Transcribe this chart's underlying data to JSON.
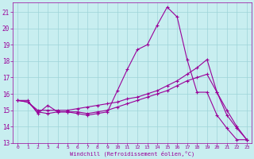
{
  "xlabel": "Windchill (Refroidissement éolien,°C)",
  "background_color": "#c8eef0",
  "grid_color": "#9dd4d8",
  "line_color": "#990099",
  "xlim": [
    -0.5,
    23.5
  ],
  "ylim": [
    13,
    21.6
  ],
  "yticks": [
    13,
    14,
    15,
    16,
    17,
    18,
    19,
    20,
    21
  ],
  "xticks": [
    0,
    1,
    2,
    3,
    4,
    5,
    6,
    7,
    8,
    9,
    10,
    11,
    12,
    13,
    14,
    15,
    16,
    17,
    18,
    19,
    20,
    21,
    22,
    23
  ],
  "line1_x": [
    0,
    1,
    2,
    3,
    4,
    5,
    6,
    7,
    8,
    9,
    10,
    11,
    12,
    13,
    14,
    15,
    16,
    17,
    18,
    19,
    20,
    21,
    22,
    23
  ],
  "line1_y": [
    15.6,
    15.6,
    14.8,
    15.3,
    14.9,
    14.9,
    14.8,
    14.7,
    14.8,
    14.9,
    16.2,
    17.5,
    18.7,
    19.0,
    20.2,
    21.3,
    20.7,
    18.1,
    16.1,
    16.1,
    14.7,
    13.9,
    13.2,
    13.2
  ],
  "line2_x": [
    0,
    1,
    2,
    3,
    4,
    5,
    6,
    7,
    8,
    9,
    10,
    11,
    12,
    13,
    14,
    15,
    16,
    17,
    18,
    19,
    20,
    21,
    22,
    23
  ],
  "line2_y": [
    15.6,
    15.5,
    15.0,
    15.0,
    15.0,
    15.0,
    15.1,
    15.2,
    15.3,
    15.4,
    15.5,
    15.7,
    15.8,
    16.0,
    16.2,
    16.5,
    16.8,
    17.2,
    17.6,
    18.1,
    16.1,
    14.7,
    13.9,
    13.2
  ],
  "line3_x": [
    0,
    1,
    2,
    3,
    4,
    5,
    6,
    7,
    8,
    9,
    10,
    11,
    12,
    13,
    14,
    15,
    16,
    17,
    18,
    19,
    20,
    21,
    22,
    23
  ],
  "line3_y": [
    15.6,
    15.5,
    14.9,
    14.8,
    14.9,
    14.9,
    14.9,
    14.8,
    14.9,
    15.0,
    15.2,
    15.4,
    15.6,
    15.8,
    16.0,
    16.2,
    16.5,
    16.8,
    17.0,
    17.2,
    16.1,
    15.0,
    14.0,
    13.2
  ]
}
